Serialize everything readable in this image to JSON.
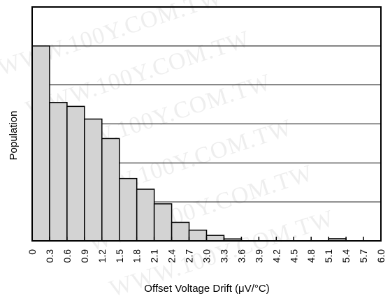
{
  "watermark_text": "WWW.100Y.COM.TW",
  "chart_data": {
    "type": "bar",
    "title": "",
    "xlabel": "Offset Voltage Drift (μV/°C)",
    "ylabel": "Population",
    "x_tick_labels": [
      "0",
      "0.3",
      "0.6",
      "0.9",
      "1.2",
      "1.5",
      "1.8",
      "2.1",
      "2.4",
      "2.7",
      "3.0",
      "3.3",
      "3.6",
      "3.9",
      "4.2",
      "4.5",
      "4.8",
      "5.1",
      "5.4",
      "5.7",
      "6.0"
    ],
    "bins": [
      {
        "from": 0.0,
        "to": 0.3,
        "value": 100
      },
      {
        "from": 0.3,
        "to": 0.6,
        "value": 71
      },
      {
        "from": 0.6,
        "to": 0.9,
        "value": 69
      },
      {
        "from": 0.9,
        "to": 1.2,
        "value": 62.5
      },
      {
        "from": 1.2,
        "to": 1.5,
        "value": 52.5
      },
      {
        "from": 1.5,
        "to": 1.8,
        "value": 32
      },
      {
        "from": 1.8,
        "to": 2.1,
        "value": 26.5
      },
      {
        "from": 2.1,
        "to": 2.4,
        "value": 19
      },
      {
        "from": 2.4,
        "to": 2.7,
        "value": 9.5
      },
      {
        "from": 2.7,
        "to": 3.0,
        "value": 5.5
      },
      {
        "from": 3.0,
        "to": 3.3,
        "value": 2.8
      },
      {
        "from": 3.3,
        "to": 3.6,
        "value": 1
      },
      {
        "from": 3.6,
        "to": 3.9,
        "value": 0
      },
      {
        "from": 3.9,
        "to": 4.2,
        "value": 0
      },
      {
        "from": 4.2,
        "to": 4.5,
        "value": 0
      },
      {
        "from": 4.5,
        "to": 4.8,
        "value": 0
      },
      {
        "from": 4.8,
        "to": 5.1,
        "value": 0
      },
      {
        "from": 5.1,
        "to": 5.4,
        "value": 1.1
      },
      {
        "from": 5.4,
        "to": 5.7,
        "value": 0
      },
      {
        "from": 5.7,
        "to": 6.0,
        "value": 0
      }
    ],
    "xlim": [
      0,
      6.0
    ],
    "ylim": [
      0,
      120
    ],
    "y_gridlines": [
      20,
      40,
      60,
      80,
      100
    ],
    "grid": "horizontal",
    "legend": "none",
    "bar_fill": "#d3d3d3",
    "bar_stroke": "#000000",
    "axis_color": "#000000"
  }
}
